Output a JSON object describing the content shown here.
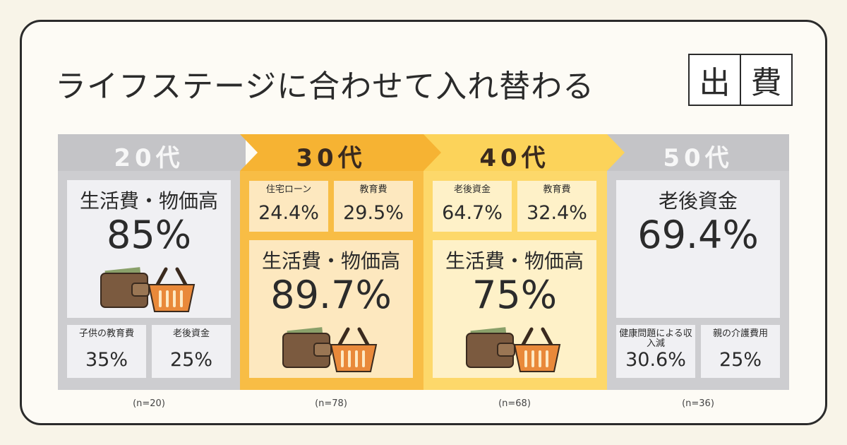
{
  "header": {
    "title": "ライフステージに合わせて入れ替わる",
    "badge": [
      "出",
      "費"
    ]
  },
  "columns": [
    {
      "age": "20代",
      "main": {
        "label": "生活費・物価高",
        "value": "85%"
      },
      "subs": [
        {
          "label": "子供の教育費",
          "value": "35%"
        },
        {
          "label": "老後資金",
          "value": "25%"
        }
      ],
      "n": "(n=20)"
    },
    {
      "age": "30代",
      "main": {
        "label": "生活費・物価高",
        "value": "89.7%"
      },
      "subs": [
        {
          "label": "住宅ローン",
          "value": "24.4%"
        },
        {
          "label": "教育費",
          "value": "29.5%"
        }
      ],
      "n": "(n=78)"
    },
    {
      "age": "40代",
      "main": {
        "label": "生活費・物価高",
        "value": "75%"
      },
      "subs": [
        {
          "label": "老後資金",
          "value": "64.7%"
        },
        {
          "label": "教育費",
          "value": "32.4%"
        }
      ],
      "n": "(n=68)"
    },
    {
      "age": "50代",
      "main": {
        "label": "老後資金",
        "value": "69.4%"
      },
      "subs": [
        {
          "label": "健康問題による収入減",
          "value": "30.6%"
        },
        {
          "label": "親の介護費用",
          "value": "25%"
        }
      ],
      "n": "(n=36)"
    }
  ]
}
